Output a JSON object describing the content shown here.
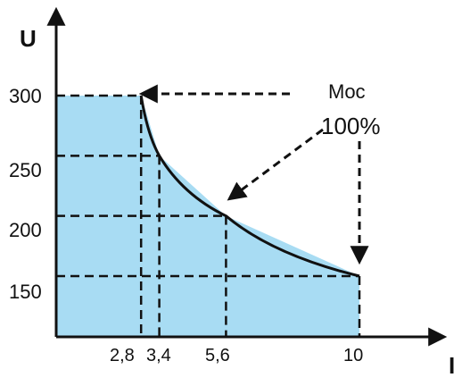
{
  "chart_data": {
    "type": "area",
    "title": "",
    "xlabel": "I",
    "ylabel": "U",
    "x_ticks": [
      "2,8",
      "3,4",
      "5,6",
      "10"
    ],
    "y_ticks": [
      "300",
      "250",
      "200",
      "150"
    ],
    "xlim": [
      0,
      12.5
    ],
    "ylim": [
      100,
      350
    ],
    "grid": false,
    "series": [
      {
        "points": [
          {
            "x": 0,
            "y": 300
          },
          {
            "x": 2.8,
            "y": 300
          },
          {
            "x": 3.4,
            "y": 250
          },
          {
            "x": 5.6,
            "y": 200
          },
          {
            "x": 10,
            "y": 150
          }
        ]
      }
    ],
    "reference_points": [
      {
        "x": 2.8,
        "y": 300
      },
      {
        "x": 3.4,
        "y": 250
      },
      {
        "x": 5.6,
        "y": 200
      },
      {
        "x": 10,
        "y": 150
      }
    ],
    "annotation": {
      "line1": "Moc",
      "line2": "100%"
    },
    "colors": {
      "fill": "#a8dcf3",
      "line": "#111111"
    }
  }
}
